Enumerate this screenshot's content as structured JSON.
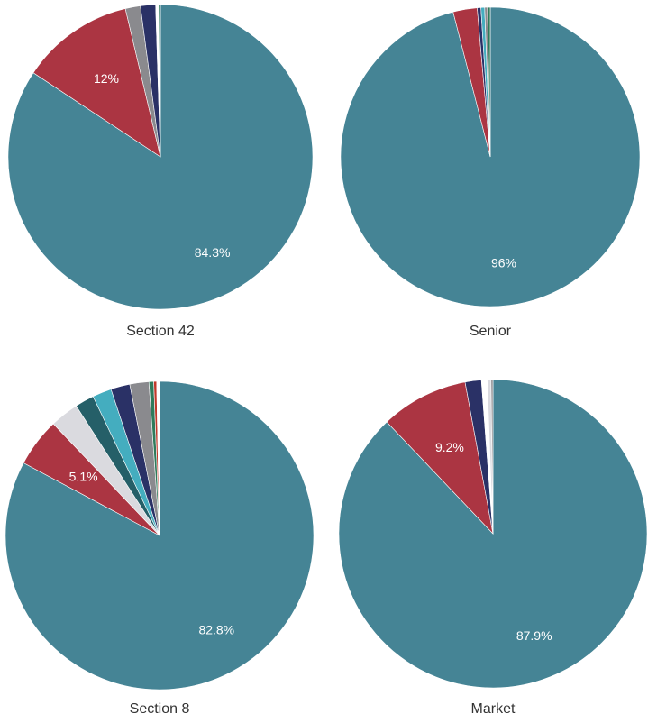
{
  "chart_data": [
    {
      "type": "pie",
      "title": "Section 42",
      "slices": [
        {
          "value": 84.3,
          "color": "#458495",
          "label": "84.3%"
        },
        {
          "value": 12.0,
          "color": "#ab3542",
          "label": "12%"
        },
        {
          "value": 1.6,
          "color": "#8a8a8e",
          "label": ""
        },
        {
          "value": 1.6,
          "color": "#2a3166",
          "label": ""
        },
        {
          "value": 0.3,
          "color": "#ffffff",
          "label": ""
        },
        {
          "value": 0.2,
          "color": "#2f7a5b",
          "label": ""
        }
      ]
    },
    {
      "type": "pie",
      "title": "Senior",
      "slices": [
        {
          "value": 96.0,
          "color": "#458495",
          "label": "96%"
        },
        {
          "value": 2.6,
          "color": "#ab3542",
          "label": ""
        },
        {
          "value": 0.4,
          "color": "#2a3166",
          "label": ""
        },
        {
          "value": 0.4,
          "color": "#44adbf",
          "label": ""
        },
        {
          "value": 0.3,
          "color": "#8a8a8e",
          "label": ""
        },
        {
          "value": 0.3,
          "color": "#2f7a5b",
          "label": ""
        }
      ]
    },
    {
      "type": "pie",
      "title": "Section 8",
      "slices": [
        {
          "value": 82.8,
          "color": "#458495",
          "label": "82.8%"
        },
        {
          "value": 5.1,
          "color": "#ab3542",
          "label": "5.1%"
        },
        {
          "value": 3.0,
          "color": "#dadadf",
          "label": ""
        },
        {
          "value": 2.0,
          "color": "#255f68",
          "label": ""
        },
        {
          "value": 2.0,
          "color": "#44adbf",
          "label": ""
        },
        {
          "value": 2.0,
          "color": "#2a3166",
          "label": ""
        },
        {
          "value": 2.0,
          "color": "#8a8a8e",
          "label": ""
        },
        {
          "value": 0.5,
          "color": "#2f7a5b",
          "label": ""
        },
        {
          "value": 0.3,
          "color": "#c0392b",
          "label": ""
        },
        {
          "value": 0.3,
          "color": "#ffffff",
          "label": ""
        }
      ]
    },
    {
      "type": "pie",
      "title": "Market",
      "slices": [
        {
          "value": 87.9,
          "color": "#458495",
          "label": "87.9%"
        },
        {
          "value": 9.2,
          "color": "#ab3542",
          "label": "9.2%"
        },
        {
          "value": 1.7,
          "color": "#2a3166",
          "label": ""
        },
        {
          "value": 0.6,
          "color": "#ffffff",
          "label": ""
        },
        {
          "value": 0.4,
          "color": "#dadadf",
          "label": ""
        },
        {
          "value": 0.2,
          "color": "#8a8a8e",
          "label": ""
        }
      ]
    }
  ]
}
